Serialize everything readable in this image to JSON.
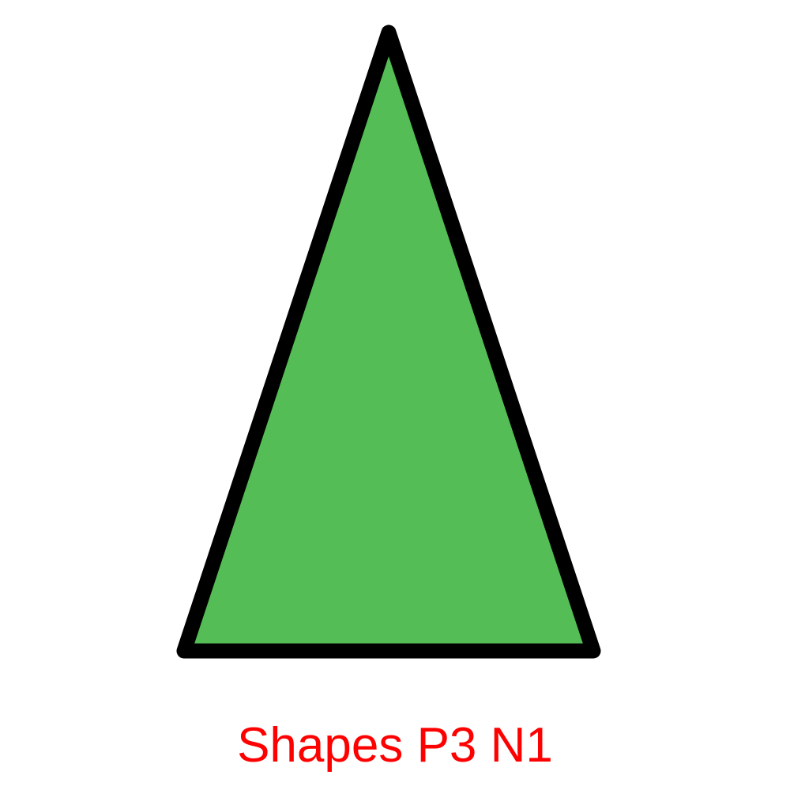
{
  "diagram": {
    "shape": "triangle",
    "fill_color": "#55BD55",
    "stroke_color": "#000000",
    "caption": "Shapes P3 N1",
    "caption_color": "#FF0000"
  }
}
